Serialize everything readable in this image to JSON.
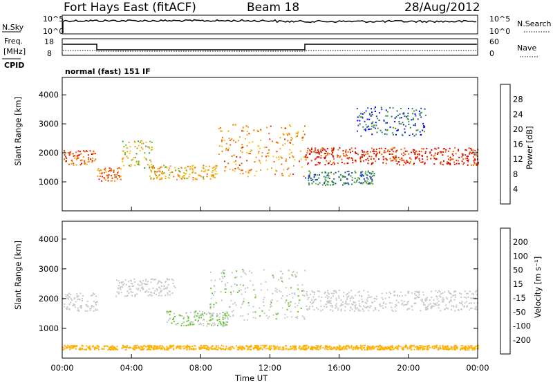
{
  "header": {
    "station": "Fort Hays East (fitACF)",
    "beam": "Beam 18",
    "date": "28/Aug/2012"
  },
  "side_labels": {
    "nsky": "N.Sky",
    "freq": "Freq.",
    "freq_unit": "[MHz]",
    "cpid": "CPID",
    "nsearch": "N.Search",
    "nave": "Nave"
  },
  "top_strip": {
    "left_ticks": [
      "10^5",
      "10^0"
    ],
    "right_ticks": [
      "10^5",
      "10^0"
    ]
  },
  "freq_strip": {
    "left_ticks": [
      "18",
      "8"
    ],
    "right_ticks": [
      "60",
      "0"
    ]
  },
  "cpid_text": "normal (fast) 151 IF",
  "chart_data": [
    {
      "type": "heatmap",
      "name": "power",
      "ylabel": "Slant Range [km]",
      "y_ticks": [
        "4000",
        "3000",
        "2000",
        "1000"
      ],
      "colorbar": {
        "label": "Power [dB]",
        "ticks": [
          "28",
          "24",
          "20",
          "16",
          "12",
          "8",
          "4"
        ],
        "colors": [
          "#0000ff",
          "#2244bb",
          "#2e7d4a",
          "#3f9c3f",
          "#77b62e",
          "#f4c21a",
          "#f39c12",
          "#ee6a00",
          "#e42a00",
          "#d40000"
        ]
      },
      "bands": [
        {
          "t0": 0.0,
          "t1": 1.9,
          "r0": 1600,
          "r1": 2100,
          "power": 24
        },
        {
          "t0": 2.0,
          "t1": 3.4,
          "r0": 1050,
          "r1": 1500,
          "power": 22
        },
        {
          "t0": 3.4,
          "t1": 5.2,
          "r0": 1500,
          "r1": 2500,
          "power": 16
        },
        {
          "t0": 5.0,
          "t1": 9.0,
          "r0": 1100,
          "r1": 1600,
          "power": 18
        },
        {
          "t0": 9.0,
          "t1": 14.0,
          "r0": 1200,
          "r1": 3000,
          "power": 20
        },
        {
          "t0": 14.0,
          "t1": 24.0,
          "r0": 1600,
          "r1": 2200,
          "power": 26
        },
        {
          "t0": 14.0,
          "t1": 18.0,
          "r0": 900,
          "r1": 1400,
          "power": 8
        },
        {
          "t0": 17.0,
          "t1": 21.0,
          "r0": 2600,
          "r1": 3600,
          "power": 6
        }
      ]
    },
    {
      "type": "heatmap",
      "name": "velocity",
      "ylabel": "Slant Range [km]",
      "y_ticks": [
        "4000",
        "3000",
        "2000",
        "1000"
      ],
      "colorbar": {
        "label": "Velocity [m s⁻¹]",
        "ticks": [
          "200",
          "100",
          "50",
          "15",
          "-15",
          "-50",
          "-100",
          "-200"
        ],
        "colors": [
          "#e10000",
          "#ff4400",
          "#ff8c00",
          "#ffb000",
          "#c8c8c8",
          "#c8c8c8",
          "#62c42e",
          "#2a8c4a",
          "#2a4cb0",
          "#1a2ca0"
        ]
      },
      "bands": [
        {
          "t0": 0.0,
          "t1": 2.0,
          "r0": 1600,
          "r1": 2200,
          "vel": 0
        },
        {
          "t0": 3.0,
          "t1": 6.5,
          "r0": 2100,
          "r1": 2700,
          "vel": 0
        },
        {
          "t0": 6.0,
          "t1": 9.5,
          "r0": 1100,
          "r1": 1600,
          "vel": 40
        },
        {
          "t0": 8.5,
          "t1": 14.0,
          "r0": 1300,
          "r1": 3000,
          "vel": 30
        },
        {
          "t0": 14.0,
          "t1": 24.0,
          "r0": 1600,
          "r1": 2300,
          "vel": 0
        },
        {
          "t0": 0.0,
          "t1": 24.0,
          "r0": 300,
          "r1": 450,
          "vel": -60
        }
      ]
    }
  ],
  "x_axis": {
    "ticks": [
      "00:00",
      "04:00",
      "08:00",
      "12:00",
      "16:00",
      "20:00",
      "00:00"
    ],
    "label": "Time UT"
  }
}
